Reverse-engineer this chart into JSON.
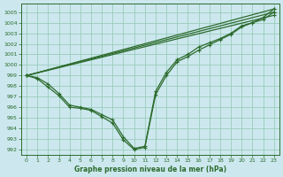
{
  "xlabel": "Graphe pression niveau de la mer (hPa)",
  "bg_color": "#cce8ee",
  "grid_color": "#99ccbb",
  "line_color": "#2d6b2d",
  "ylim": [
    991.5,
    1005.8
  ],
  "xlim": [
    -0.5,
    23.5
  ],
  "yticks": [
    992,
    993,
    994,
    995,
    996,
    997,
    998,
    999,
    1000,
    1001,
    1002,
    1003,
    1004,
    1005
  ],
  "xticks": [
    0,
    1,
    2,
    3,
    4,
    5,
    6,
    7,
    8,
    9,
    10,
    11,
    12,
    13,
    14,
    15,
    16,
    17,
    18,
    19,
    20,
    21,
    22,
    23
  ],
  "straight_lines": [
    {
      "x": [
        0,
        23
      ],
      "y": [
        999.0,
        1005.3
      ]
    },
    {
      "x": [
        0,
        23
      ],
      "y": [
        999.0,
        1005.0
      ]
    },
    {
      "x": [
        0,
        23
      ],
      "y": [
        999.0,
        1004.7
      ]
    }
  ],
  "curved_lines": [
    {
      "x": [
        0,
        1,
        2,
        3,
        4,
        5,
        6,
        7,
        8,
        9,
        10,
        11,
        12,
        13,
        14,
        15,
        16,
        17,
        18,
        19,
        20,
        21,
        22,
        23
      ],
      "y": [
        999.0,
        998.8,
        998.2,
        997.3,
        996.2,
        996.0,
        995.8,
        995.3,
        994.8,
        993.2,
        992.1,
        992.3,
        997.5,
        999.3,
        1000.5,
        1001.0,
        1001.7,
        1002.1,
        1002.5,
        1003.0,
        1003.7,
        1004.0,
        1004.5,
        1005.3
      ]
    },
    {
      "x": [
        0,
        1,
        2,
        3,
        4,
        5,
        6,
        7,
        8,
        9,
        10,
        11,
        12,
        13,
        14,
        15,
        16,
        17,
        18,
        19,
        20,
        21,
        22,
        23
      ],
      "y": [
        999.0,
        998.7,
        997.9,
        997.1,
        996.0,
        995.9,
        995.7,
        995.1,
        994.5,
        992.9,
        992.0,
        992.2,
        997.2,
        999.0,
        1000.3,
        1000.8,
        1001.4,
        1001.9,
        1002.4,
        1002.9,
        1003.6,
        1004.0,
        1004.3,
        1005.0
      ]
    }
  ]
}
